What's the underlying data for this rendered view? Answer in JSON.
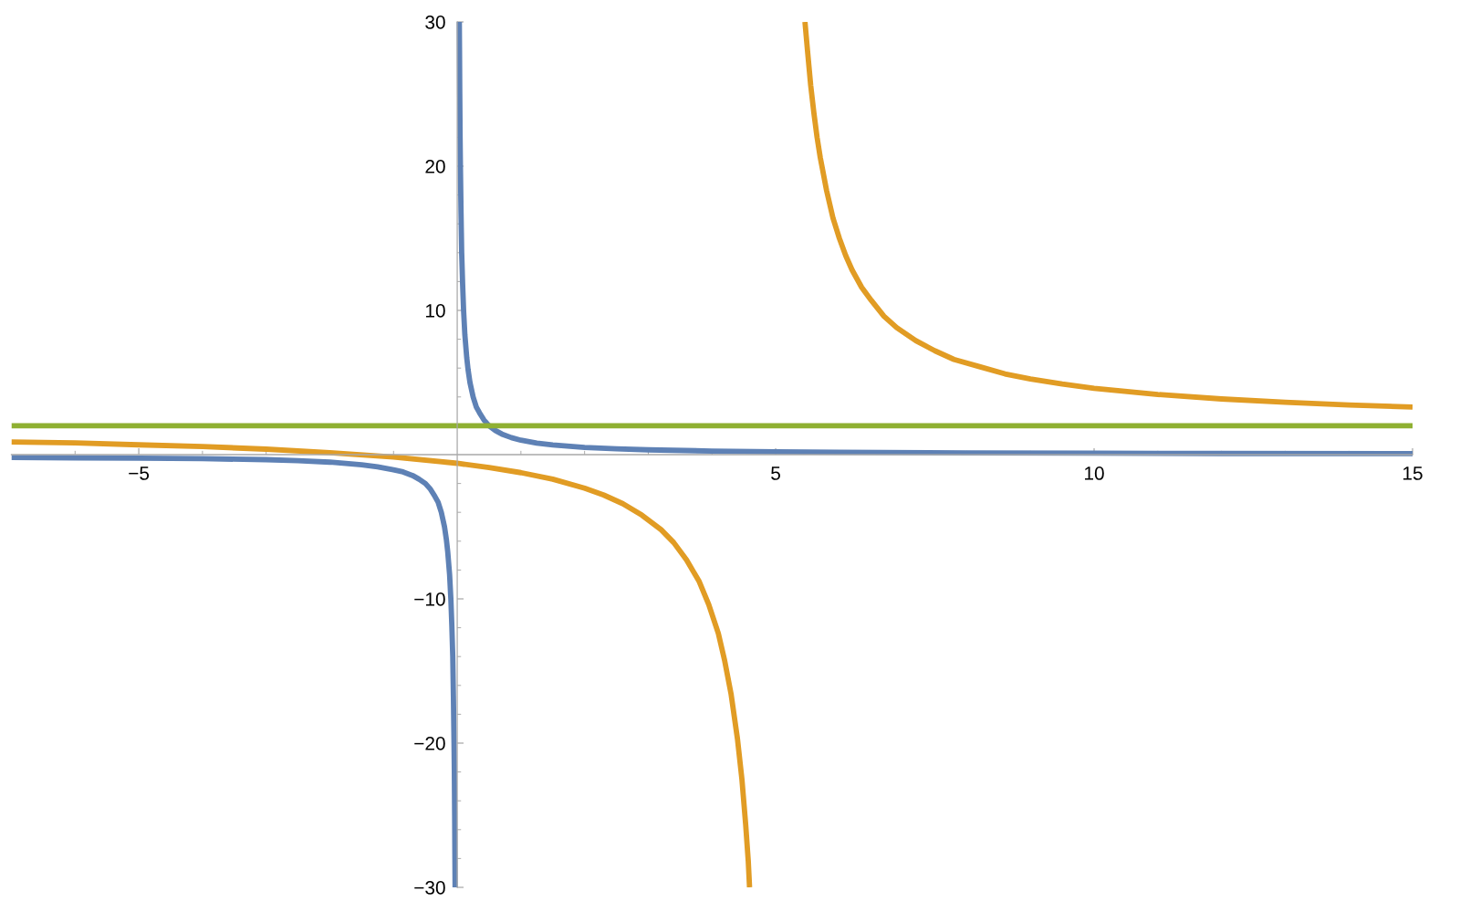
{
  "chart_data": {
    "type": "line",
    "xlim": [
      -7,
      15
    ],
    "ylim": [
      -30,
      30
    ],
    "xticks": [
      {
        "value": -6,
        "label": null
      },
      {
        "value": -5,
        "label": "−5"
      },
      {
        "value": -4,
        "label": null
      },
      {
        "value": -3,
        "label": null
      },
      {
        "value": -2,
        "label": null
      },
      {
        "value": -1,
        "label": null
      },
      {
        "value": 1,
        "label": null
      },
      {
        "value": 2,
        "label": null
      },
      {
        "value": 3,
        "label": null
      },
      {
        "value": 4,
        "label": null
      },
      5,
      {
        "value": 6,
        "label": null
      },
      {
        "value": 7,
        "label": null
      },
      {
        "value": 8,
        "label": null
      },
      {
        "value": 9,
        "label": null
      },
      10,
      {
        "value": 11,
        "label": null
      },
      {
        "value": 12,
        "label": null
      },
      {
        "value": 13,
        "label": null
      },
      {
        "value": 14,
        "label": null
      },
      15
    ],
    "yticks": [
      {
        "value": -30,
        "label": "−30"
      },
      {
        "value": -28,
        "label": null
      },
      {
        "value": -26,
        "label": null
      },
      {
        "value": -24,
        "label": null
      },
      {
        "value": -22,
        "label": null
      },
      {
        "value": -20,
        "label": "−20"
      },
      {
        "value": -18,
        "label": null
      },
      {
        "value": -16,
        "label": null
      },
      {
        "value": -14,
        "label": null
      },
      {
        "value": -12,
        "label": null
      },
      {
        "value": -10,
        "label": "−10"
      },
      {
        "value": -8,
        "label": null
      },
      {
        "value": -6,
        "label": null
      },
      {
        "value": -4,
        "label": null
      },
      {
        "value": -2,
        "label": null
      },
      {
        "value": 2,
        "label": null
      },
      {
        "value": 4,
        "label": null
      },
      {
        "value": 6,
        "label": null
      },
      {
        "value": 8,
        "label": null
      },
      10,
      {
        "value": 12,
        "label": null
      },
      {
        "value": 14,
        "label": null
      },
      {
        "value": 16,
        "label": null
      },
      {
        "value": 18,
        "label": null
      },
      20,
      {
        "value": 22,
        "label": null
      },
      {
        "value": 24,
        "label": null
      },
      {
        "value": 26,
        "label": null
      },
      {
        "value": 28,
        "label": null
      },
      30
    ],
    "grid": false,
    "marker": "none",
    "line_style": "solid",
    "series": [
      {
        "color": "#5e81b5",
        "x": [
          -7,
          -6,
          -5,
          -4,
          -3,
          -2.5,
          -2,
          -1.5,
          -1.25,
          -1,
          -0.85,
          -0.7,
          -0.6,
          -0.5,
          -0.42,
          -0.35,
          -0.3,
          -0.25,
          -0.2,
          -0.17,
          -0.15,
          -0.12,
          -0.1,
          -0.085,
          -0.07,
          -0.06,
          -0.05,
          -0.045,
          -0.04,
          -0.036,
          -0.033,
          0,
          0.033,
          0.036,
          0.04,
          0.045,
          0.05,
          0.06,
          0.07,
          0.085,
          0.1,
          0.12,
          0.15,
          0.17,
          0.2,
          0.25,
          0.3,
          0.35,
          0.42,
          0.5,
          0.6,
          0.7,
          0.85,
          1,
          1.25,
          1.5,
          2,
          2.5,
          3,
          4,
          5,
          6,
          8,
          10,
          12,
          15
        ],
        "values": [
          -0.2,
          -0.22,
          -0.25,
          -0.28,
          -0.35,
          -0.42,
          -0.52,
          -0.7,
          -0.85,
          -1.05,
          -1.2,
          -1.45,
          -1.7,
          -2.0,
          -2.4,
          -2.9,
          -3.3,
          -4.0,
          -5.0,
          -5.9,
          -6.7,
          -8.3,
          -10,
          -11.8,
          -14,
          -16.7,
          -20,
          -22,
          -25,
          -28,
          -30,
          null,
          30,
          28,
          25,
          22,
          20,
          16.7,
          14,
          11.8,
          10,
          8.3,
          6.7,
          5.9,
          5.0,
          4.0,
          3.3,
          2.9,
          2.4,
          2.0,
          1.67,
          1.43,
          1.18,
          1.0,
          0.8,
          0.67,
          0.5,
          0.4,
          0.33,
          0.25,
          0.2,
          0.17,
          0.12,
          0.1,
          0.08,
          0.07
        ]
      },
      {
        "color": "#e19c24",
        "x": [
          -7,
          -6,
          -5,
          -4,
          -3,
          -2,
          -1,
          0,
          0.5,
          1,
          1.5,
          2,
          2.3,
          2.6,
          2.9,
          3.2,
          3.4,
          3.6,
          3.8,
          3.95,
          4.1,
          4.2,
          4.3,
          4.4,
          4.47,
          4.53,
          4.57,
          4.59,
          5,
          5.46,
          5.48,
          5.5,
          5.55,
          5.6,
          5.65,
          5.7,
          5.8,
          5.9,
          6,
          6.1,
          6.2,
          6.35,
          6.5,
          6.7,
          6.9,
          7.2,
          7.5,
          7.8,
          8.2,
          8.6,
          9,
          9.5,
          10,
          11,
          12,
          13,
          14,
          15
        ],
        "values": [
          0.88,
          0.82,
          0.68,
          0.56,
          0.38,
          0.13,
          -0.17,
          -0.6,
          -0.9,
          -1.25,
          -1.7,
          -2.33,
          -2.8,
          -3.4,
          -4.2,
          -5.2,
          -6.1,
          -7.3,
          -8.8,
          -10.4,
          -12.4,
          -14.3,
          -16.6,
          -19.7,
          -22.5,
          -25.7,
          -28.2,
          -30,
          null,
          30,
          29,
          28,
          25.6,
          23.7,
          22,
          20.6,
          18.3,
          16.4,
          15,
          13.8,
          12.8,
          11.6,
          10.7,
          9.6,
          8.8,
          7.9,
          7.2,
          6.6,
          6.1,
          5.6,
          5.25,
          4.9,
          4.6,
          4.17,
          3.86,
          3.63,
          3.44,
          3.3
        ]
      },
      {
        "color": "#8fb032",
        "x": [
          -7,
          15
        ],
        "values": [
          2,
          2
        ]
      }
    ]
  }
}
